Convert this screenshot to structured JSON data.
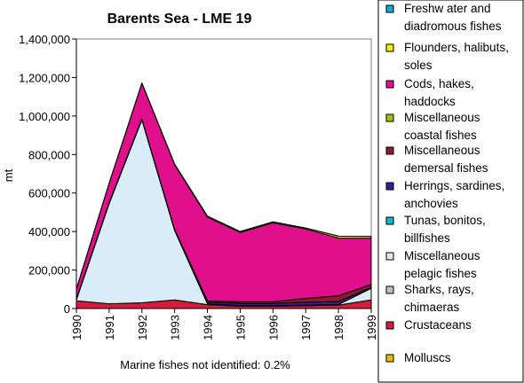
{
  "chart_data": {
    "type": "area",
    "stacked": true,
    "title": "Barents Sea - LME 19",
    "ylabel": "mt",
    "xlabel": "",
    "footnote": "Marine fishes not identified: 0.2%",
    "x": [
      "1990",
      "1991",
      "1992",
      "1993",
      "1994",
      "1995",
      "1996",
      "1997",
      "1998",
      "1999"
    ],
    "ylim": [
      0,
      1400000
    ],
    "yticks": [
      0,
      200000,
      400000,
      600000,
      800000,
      1000000,
      1200000,
      1400000
    ],
    "ytick_labels": [
      "0",
      "200,000",
      "400,000",
      "600,000",
      "800,000",
      "1,000,000",
      "1,200,000",
      "1,400,000"
    ],
    "legend_position": "right",
    "series": [
      {
        "name": "Molluscs",
        "color": "#e8c000",
        "values": [
          0,
          0,
          0,
          0,
          0,
          0,
          0,
          0,
          0,
          0
        ]
      },
      {
        "name": "Crustaceans",
        "color": "#d41c3c",
        "values": [
          40000,
          25000,
          30000,
          45000,
          20000,
          12000,
          12000,
          15000,
          18000,
          45000
        ]
      },
      {
        "name": "Sharks, rays, chimaeras",
        "color": "#c0c0c0",
        "values": [
          0,
          0,
          0,
          0,
          0,
          0,
          0,
          0,
          0,
          0
        ]
      },
      {
        "name": "Miscellaneous pelagic fishes",
        "color": "#d9ecf8",
        "values": [
          5000,
          520000,
          950000,
          360000,
          5000,
          3000,
          3000,
          3000,
          3000,
          60000
        ]
      },
      {
        "name": "Tunas, bonitos, billfishes",
        "color": "#1fb0d8",
        "values": [
          0,
          0,
          0,
          0,
          0,
          0,
          0,
          0,
          0,
          0
        ]
      },
      {
        "name": "Herrings, sardines, anchovies",
        "color": "#3a1e8c",
        "values": [
          2000,
          2000,
          2000,
          2000,
          8000,
          12000,
          12000,
          15000,
          15000,
          5000
        ]
      },
      {
        "name": "Miscellaneous demersal fishes",
        "color": "#8c1c2c",
        "values": [
          3000,
          3000,
          3000,
          5000,
          7000,
          8000,
          8000,
          20000,
          30000,
          15000
        ]
      },
      {
        "name": "Miscellaneous coastal fishes",
        "color": "#9cc800",
        "values": [
          0,
          0,
          0,
          0,
          0,
          0,
          0,
          0,
          0,
          0
        ]
      },
      {
        "name": "Cods, hakes, haddocks",
        "color": "#e0108c",
        "values": [
          50000,
          100000,
          185000,
          335000,
          435000,
          360000,
          410000,
          360000,
          300000,
          240000
        ]
      },
      {
        "name": "Flounders, halibuts, soles",
        "color": "#f0f000",
        "values": [
          1000,
          1000,
          1000,
          3000,
          5000,
          5000,
          5000,
          5000,
          10000,
          10000
        ]
      },
      {
        "name": "Freshwater and diadromous fishes",
        "color": "#18a8d8",
        "values": [
          0,
          0,
          0,
          0,
          0,
          0,
          0,
          0,
          0,
          0
        ]
      }
    ],
    "legend_order": [
      {
        "label_lines": [
          "Freshw ater and",
          "diadromous fishes"
        ],
        "color": "#18a8d8"
      },
      {
        "label_lines": [
          "Flounders, halibuts,",
          "soles"
        ],
        "color": "#f0f000"
      },
      {
        "label_lines": [
          "Cods, hakes,",
          "haddocks"
        ],
        "color": "#e0108c"
      },
      {
        "label_lines": [
          "Miscellaneous",
          "coastal fishes"
        ],
        "color": "#9cc800"
      },
      {
        "label_lines": [
          "Miscellaneous",
          "demersal fishes"
        ],
        "color": "#8c1c2c"
      },
      {
        "label_lines": [
          "Herrings, sardines,",
          "anchovies"
        ],
        "color": "#3a1e8c"
      },
      {
        "label_lines": [
          "Tunas, bonitos,",
          "billfishes"
        ],
        "color": "#1fb0d8"
      },
      {
        "label_lines": [
          "Miscellaneous",
          "pelagic fishes"
        ],
        "color": "#d9ecf8"
      },
      {
        "label_lines": [
          "Sharks, rays,",
          "chimaeras"
        ],
        "color": "#c0c0c0"
      },
      {
        "label_lines": [
          "Crustaceans"
        ],
        "color": "#d41c3c"
      },
      {
        "label_lines": [
          "Molluscs"
        ],
        "color": "#e8c000"
      }
    ]
  }
}
